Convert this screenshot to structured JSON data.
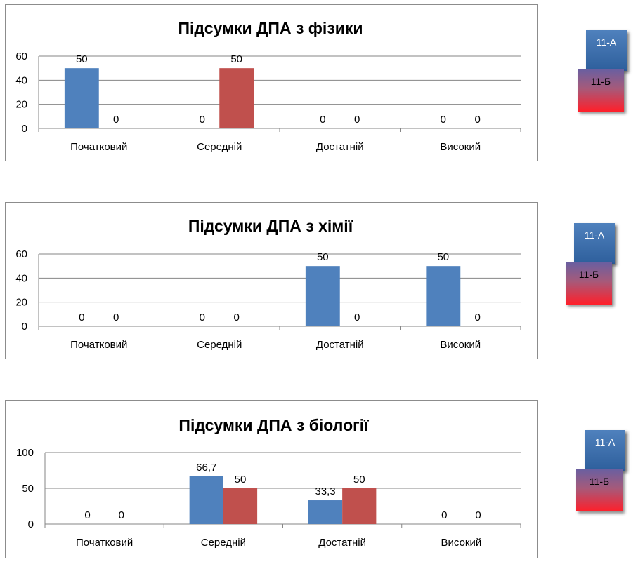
{
  "legend": {
    "a_label": "11-А",
    "b_label": "11-Б"
  },
  "colors": {
    "series_a": "#4f81bd",
    "series_b": "#c0504d",
    "grid": "#868686"
  },
  "chart_data": [
    {
      "type": "bar",
      "title": "Підсумки ДПА з фізики",
      "categories": [
        "Початковий",
        "Середній",
        "Достатній",
        "Високий"
      ],
      "ylim": [
        0,
        60
      ],
      "yticks": [
        0,
        20,
        40,
        60
      ],
      "grid": true,
      "series": [
        {
          "name": "11-А",
          "values": [
            50,
            0,
            0,
            0
          ],
          "labels": [
            "50",
            "0",
            "0",
            "0"
          ]
        },
        {
          "name": "11-Б",
          "values": [
            0,
            50,
            0,
            0
          ],
          "labels": [
            "0",
            "50",
            "0",
            "0"
          ]
        }
      ],
      "legend_position": "right"
    },
    {
      "type": "bar",
      "title": "Підсумки ДПА з хімії",
      "categories": [
        "Початковий",
        "Середній",
        "Достатній",
        "Високий"
      ],
      "ylim": [
        0,
        60
      ],
      "yticks": [
        0,
        20,
        40,
        60
      ],
      "grid": true,
      "series": [
        {
          "name": "11-А",
          "values": [
            0,
            0,
            50,
            50
          ],
          "labels": [
            "0",
            "0",
            "50",
            "50"
          ]
        },
        {
          "name": "11-Б",
          "values": [
            0,
            0,
            0,
            0
          ],
          "labels": [
            "0",
            "0",
            "0",
            "0"
          ]
        }
      ],
      "legend_position": "right"
    },
    {
      "type": "bar",
      "title": "Підсумки ДПА з біології",
      "categories": [
        "Початковий",
        "Середній",
        "Достатній",
        "Високий"
      ],
      "ylim": [
        0,
        100
      ],
      "yticks": [
        0,
        50,
        100
      ],
      "grid": true,
      "series": [
        {
          "name": "11-А",
          "values": [
            0,
            66.7,
            33.3,
            0
          ],
          "labels": [
            "0",
            "66,7",
            "33,3",
            "0"
          ]
        },
        {
          "name": "11-Б",
          "values": [
            0,
            50,
            50,
            0
          ],
          "labels": [
            "0",
            "50",
            "50",
            "0"
          ]
        }
      ],
      "legend_position": "right"
    }
  ]
}
